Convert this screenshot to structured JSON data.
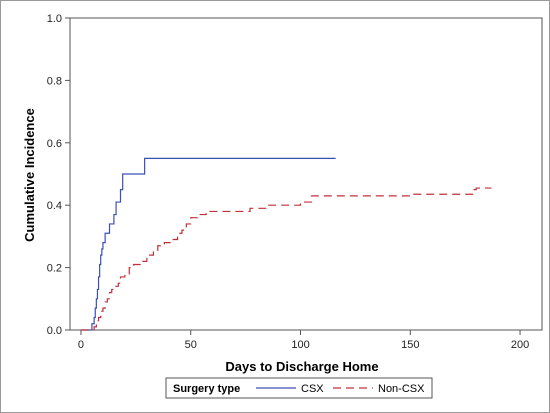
{
  "chart_data": {
    "type": "line",
    "subtype": "step",
    "xlabel": "Days to Discharge Home",
    "ylabel": "Cumulative Incidence",
    "xlim": [
      -5,
      210
    ],
    "ylim": [
      0,
      1.0
    ],
    "x_ticks": [
      0,
      50,
      100,
      150,
      200
    ],
    "y_ticks": [
      0.0,
      0.2,
      0.4,
      0.6,
      0.8,
      1.0
    ],
    "x_tick_labels": [
      "0",
      "50",
      "100",
      "150",
      "200"
    ],
    "y_tick_labels": [
      "0.0",
      "0.2",
      "0.4",
      "0.6",
      "0.8",
      "1.0"
    ],
    "grid": false,
    "legend": {
      "title": "Surgery type",
      "placement": "bottom"
    },
    "series": [
      {
        "name": "CSX",
        "color": "#3b4fb8",
        "dash": "solid",
        "points": [
          [
            0,
            0.0
          ],
          [
            5,
            0.0
          ],
          [
            5,
            0.02
          ],
          [
            6,
            0.04
          ],
          [
            6.5,
            0.07
          ],
          [
            7,
            0.1
          ],
          [
            7.5,
            0.13
          ],
          [
            8,
            0.17
          ],
          [
            8.5,
            0.21
          ],
          [
            9,
            0.24
          ],
          [
            9.5,
            0.26
          ],
          [
            10,
            0.28
          ],
          [
            11,
            0.31
          ],
          [
            13,
            0.31
          ],
          [
            13,
            0.34
          ],
          [
            15,
            0.34
          ],
          [
            15,
            0.37
          ],
          [
            16,
            0.37
          ],
          [
            16,
            0.41
          ],
          [
            18,
            0.41
          ],
          [
            18,
            0.45
          ],
          [
            19,
            0.45
          ],
          [
            19,
            0.5
          ],
          [
            21,
            0.5
          ],
          [
            21,
            0.5
          ],
          [
            29,
            0.5
          ],
          [
            29,
            0.55
          ],
          [
            116,
            0.55
          ]
        ]
      },
      {
        "name": "Non-CSX",
        "color": "#c0303a",
        "dash": "dashed",
        "points": [
          [
            0,
            0.0
          ],
          [
            6,
            0.0
          ],
          [
            6,
            0.01
          ],
          [
            7,
            0.03
          ],
          [
            8,
            0.04
          ],
          [
            9,
            0.06
          ],
          [
            10,
            0.07
          ],
          [
            11,
            0.09
          ],
          [
            12,
            0.1
          ],
          [
            13,
            0.12
          ],
          [
            14,
            0.13
          ],
          [
            15,
            0.14
          ],
          [
            17,
            0.15
          ],
          [
            18,
            0.17
          ],
          [
            20,
            0.18
          ],
          [
            22,
            0.2
          ],
          [
            24,
            0.21
          ],
          [
            27,
            0.22
          ],
          [
            30,
            0.24
          ],
          [
            33,
            0.25
          ],
          [
            35,
            0.27
          ],
          [
            38,
            0.28
          ],
          [
            42,
            0.29
          ],
          [
            44,
            0.31
          ],
          [
            46,
            0.32
          ],
          [
            48,
            0.34
          ],
          [
            50,
            0.36
          ],
          [
            53,
            0.37
          ],
          [
            57,
            0.38
          ],
          [
            70,
            0.38
          ],
          [
            77,
            0.39
          ],
          [
            85,
            0.4
          ],
          [
            100,
            0.41
          ],
          [
            105,
            0.43
          ],
          [
            130,
            0.43
          ],
          [
            150,
            0.435
          ],
          [
            179,
            0.435
          ],
          [
            179,
            0.45
          ],
          [
            180,
            0.455
          ],
          [
            187,
            0.455
          ]
        ]
      }
    ]
  }
}
